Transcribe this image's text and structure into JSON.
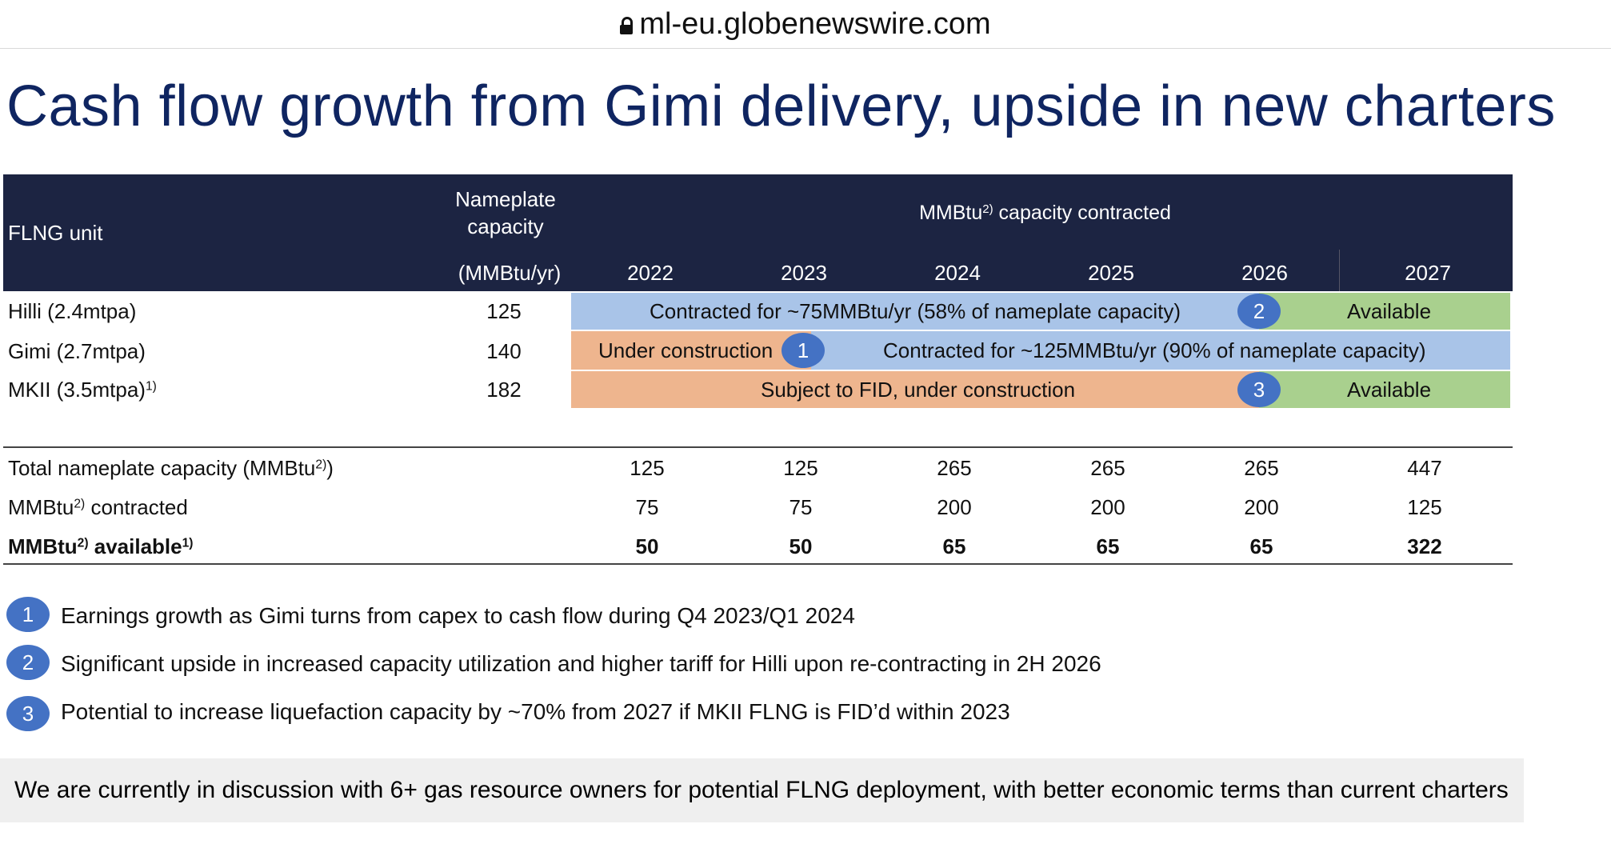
{
  "browser": {
    "url": "ml-eu.globenewswire.com"
  },
  "title": "Cash flow growth from Gimi delivery, upside in new charters",
  "table": {
    "header": {
      "flng_unit": "FLNG unit",
      "nameplate_line1": "Nameplate",
      "nameplate_line2": "capacity",
      "nameplate_unit": "(MMBtu/yr)",
      "mmbtu_prefix": "MMBtu",
      "mmbtu_sup": "2)",
      "mmbtu_suffix": " capacity contracted",
      "years": [
        "2022",
        "2023",
        "2024",
        "2025",
        "2026",
        "2027"
      ]
    },
    "rows": [
      {
        "label": "Hilli (2.4mtpa)",
        "label_sup": "",
        "capacity": "125",
        "bar_main": "Contracted for ~75MMBtu/yr (58% of nameplate capacity)",
        "bar_pre": "",
        "badge": "2",
        "bar_end": "Available"
      },
      {
        "label": "Gimi (2.7mtpa)",
        "label_sup": "",
        "capacity": "140",
        "bar_pre": "Under construction",
        "badge": "1",
        "bar_main": "Contracted for ~125MMBtu/yr (90% of nameplate capacity)",
        "bar_end": ""
      },
      {
        "label": "MKII (3.5mtpa)",
        "label_sup": "1)",
        "capacity": "182",
        "bar_main": "Subject to FID, under construction",
        "bar_pre": "",
        "badge": "3",
        "bar_end": "Available"
      }
    ],
    "summary": [
      {
        "prefix": "Total nameplate capacity (MMBtu",
        "sup": "2)",
        "suffix": ")",
        "sup2": "",
        "bold": false,
        "values": [
          "125",
          "125",
          "265",
          "265",
          "265",
          "447"
        ]
      },
      {
        "prefix": "MMBtu",
        "sup": "2)",
        "suffix": " contracted",
        "sup2": "",
        "bold": false,
        "values": [
          "75",
          "75",
          "200",
          "200",
          "200",
          "125"
        ]
      },
      {
        "prefix": "MMBtu",
        "sup": "2)",
        "suffix": " available",
        "sup2": "1)",
        "bold": true,
        "values": [
          "50",
          "50",
          "65",
          "65",
          "65",
          "322"
        ]
      }
    ]
  },
  "notes": [
    {
      "badge": "1",
      "text": "Earnings growth as Gimi turns from capex to cash flow during Q4 2023/Q1 2024"
    },
    {
      "badge": "2",
      "text": "Significant upside in increased capacity utilization and higher tariff for Hilli upon re-contracting in 2H 2026"
    },
    {
      "badge": "3",
      "text": "Potential to increase liquefaction capacity by ~70% from 2027 if MKII FLNG is FID’d within 2023"
    }
  ],
  "banner": "We are currently in discussion with 6+ gas resource owners for potential FLNG deployment, with better economic terms than current charters",
  "colors": {
    "header_bg": "#1c2442",
    "title": "#0f2561",
    "contracted_blue": "#a9c4e8",
    "construction_orange": "#eeb58e",
    "available_green": "#a9d08e",
    "badge_blue": "#4472c4"
  }
}
